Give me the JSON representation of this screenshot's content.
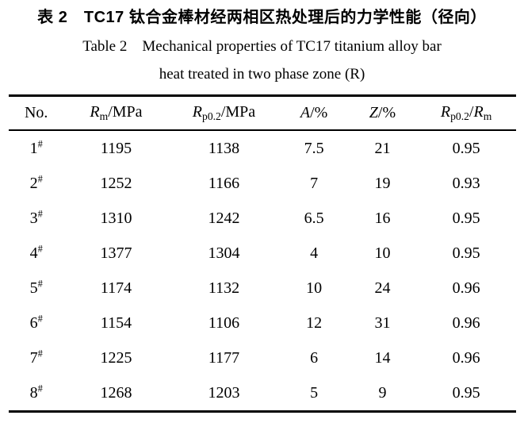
{
  "captions": {
    "zh": "表 2　TC17 钛合金棒材经两相区热处理后的力学性能（径向）",
    "en_line1": "Table 2　Mechanical properties of TC17 titanium alloy bar",
    "en_line2": "heat treated in two phase zone (R)"
  },
  "table": {
    "columns": [
      {
        "name": "no",
        "label": "No.",
        "parts": [
          {
            "t": "No."
          }
        ]
      },
      {
        "name": "rm-mpa",
        "label": "Rm/MPa",
        "parts": [
          {
            "t": "R",
            "i": true
          },
          {
            "t": "m",
            "sub": true
          },
          {
            "t": "/MPa"
          }
        ]
      },
      {
        "name": "rp02-mpa",
        "label": "Rp0.2/MPa",
        "parts": [
          {
            "t": "R",
            "i": true
          },
          {
            "t": "p0.2",
            "sub": true
          },
          {
            "t": "/MPa"
          }
        ]
      },
      {
        "name": "a-percent",
        "label": "A/%",
        "parts": [
          {
            "t": "A",
            "i": true
          },
          {
            "t": "/%"
          }
        ]
      },
      {
        "name": "z-percent",
        "label": "Z/%",
        "parts": [
          {
            "t": "Z",
            "i": true
          },
          {
            "t": "/%"
          }
        ]
      },
      {
        "name": "rp02-rm",
        "label": "Rp0.2/Rm",
        "parts": [
          {
            "t": "R",
            "i": true
          },
          {
            "t": "p0.2",
            "sub": true
          },
          {
            "t": "/"
          },
          {
            "t": "R",
            "i": true
          },
          {
            "t": "m",
            "sub": true
          }
        ]
      }
    ],
    "col_widths_percent": [
      11,
      20.5,
      22,
      13.5,
      13.5,
      19.5
    ],
    "rows": [
      {
        "no": "1",
        "suffix": "#",
        "values": [
          "1195",
          "1138",
          "7.5",
          "21",
          "0.95"
        ]
      },
      {
        "no": "2",
        "suffix": "#",
        "values": [
          "1252",
          "1166",
          "7",
          "19",
          "0.93"
        ]
      },
      {
        "no": "3",
        "suffix": "#",
        "values": [
          "1310",
          "1242",
          "6.5",
          "16",
          "0.95"
        ]
      },
      {
        "no": "4",
        "suffix": "#",
        "values": [
          "1377",
          "1304",
          "4",
          "10",
          "0.95"
        ]
      },
      {
        "no": "5",
        "suffix": "#",
        "values": [
          "1174",
          "1132",
          "10",
          "24",
          "0.96"
        ]
      },
      {
        "no": "6",
        "suffix": "#",
        "values": [
          "1154",
          "1106",
          "12",
          "31",
          "0.96"
        ]
      },
      {
        "no": "7",
        "suffix": "#",
        "values": [
          "1225",
          "1177",
          "6",
          "14",
          "0.96"
        ]
      },
      {
        "no": "8",
        "suffix": "#",
        "values": [
          "1268",
          "1203",
          "5",
          "9",
          "0.95"
        ]
      }
    ]
  },
  "chart_data": {
    "type": "table",
    "title_zh": "表 2　TC17 钛合金棒材经两相区热处理后的力学性能（径向）",
    "title_en": "Table 2 Mechanical properties of TC17 titanium alloy bar heat treated in two phase zone (R)",
    "columns": [
      "No.",
      "Rm/MPa",
      "Rp0.2/MPa",
      "A/%",
      "Z/%",
      "Rp0.2/Rm"
    ],
    "rows": [
      [
        "1#",
        1195,
        1138,
        7.5,
        21,
        0.95
      ],
      [
        "2#",
        1252,
        1166,
        7,
        19,
        0.93
      ],
      [
        "3#",
        1310,
        1242,
        6.5,
        16,
        0.95
      ],
      [
        "4#",
        1377,
        1304,
        4,
        10,
        0.95
      ],
      [
        "5#",
        1174,
        1132,
        10,
        24,
        0.96
      ],
      [
        "6#",
        1154,
        1106,
        12,
        31,
        0.96
      ],
      [
        "7#",
        1225,
        1177,
        6,
        14,
        0.96
      ],
      [
        "8#",
        1268,
        1203,
        5,
        9,
        0.95
      ]
    ]
  }
}
